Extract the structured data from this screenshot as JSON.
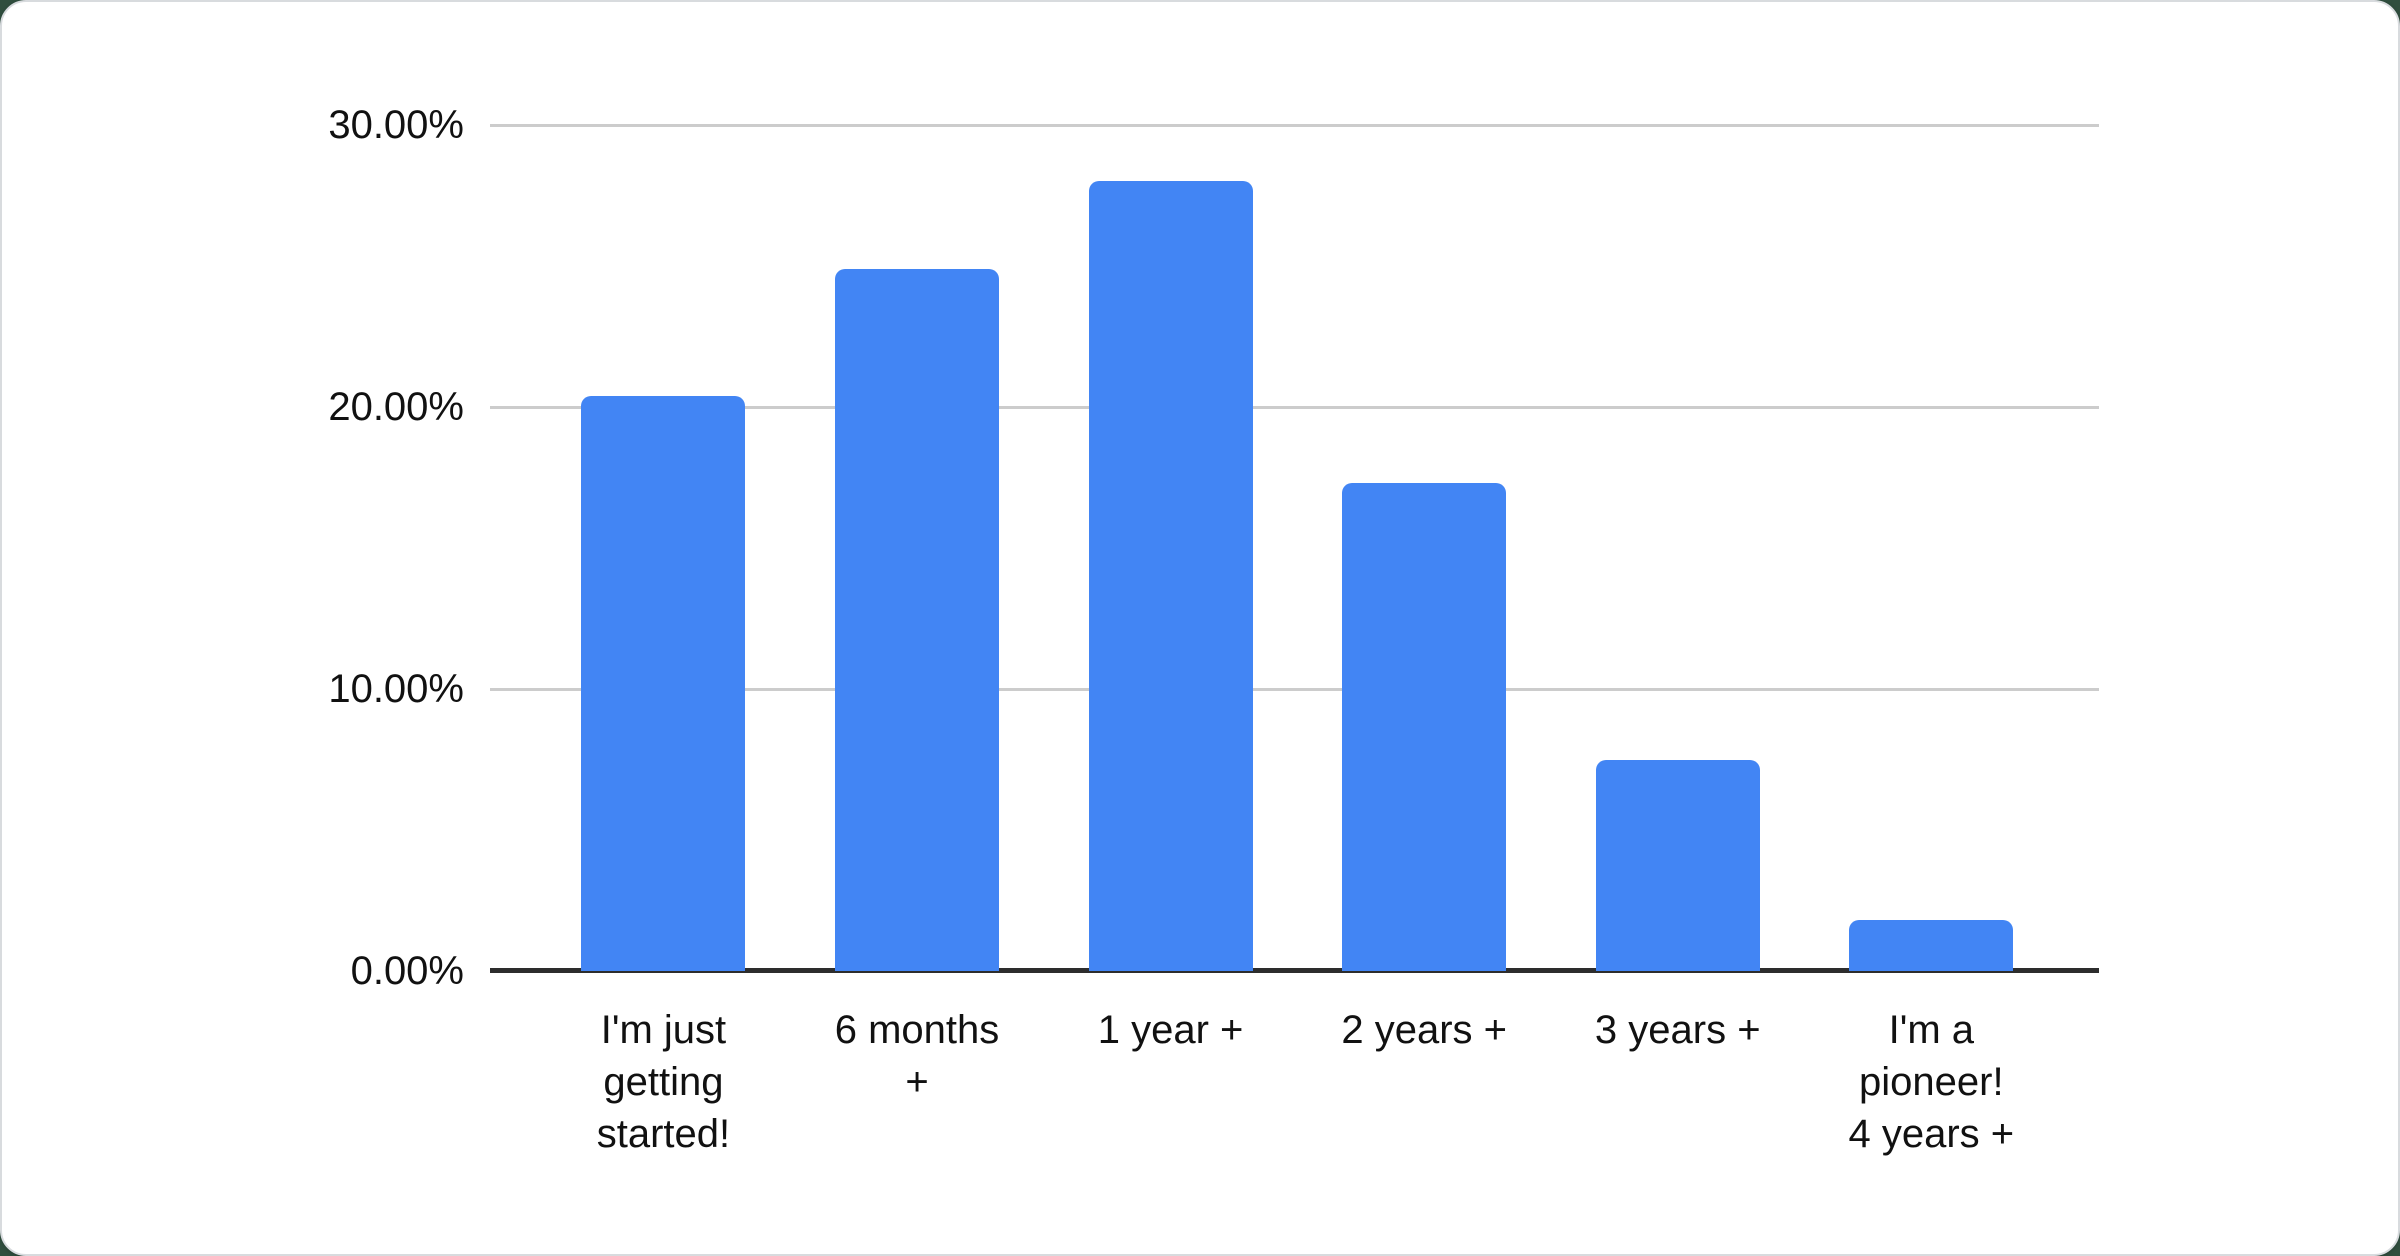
{
  "chart_data": {
    "type": "bar",
    "title": "",
    "xlabel": "",
    "ylabel": "",
    "categories": [
      "I'm just getting started!",
      "6 months +",
      "1 year +",
      "2 years +",
      "3 years +",
      "I'm a pioneer! 4 years +"
    ],
    "category_lines": [
      [
        "I'm just",
        "getting",
        "started!"
      ],
      [
        "6 months",
        "+"
      ],
      [
        "1 year +"
      ],
      [
        "2 years +"
      ],
      [
        "3 years +"
      ],
      [
        "I'm a",
        "pioneer!",
        "4 years +"
      ]
    ],
    "values": [
      20.4,
      24.9,
      28.0,
      17.3,
      7.5,
      1.8
    ],
    "ylim": [
      0,
      30
    ],
    "y_ticks": [
      "0.00%",
      "10.00%",
      "20.00%",
      "30.00%"
    ],
    "grid": true,
    "legend": false,
    "bar_color": "#4285f4",
    "gridline_color": "#cccccc",
    "axis_color": "#2d2d2d",
    "label_color": "#111111",
    "card_background": "#ffffff",
    "page_background": "#304e3e"
  }
}
